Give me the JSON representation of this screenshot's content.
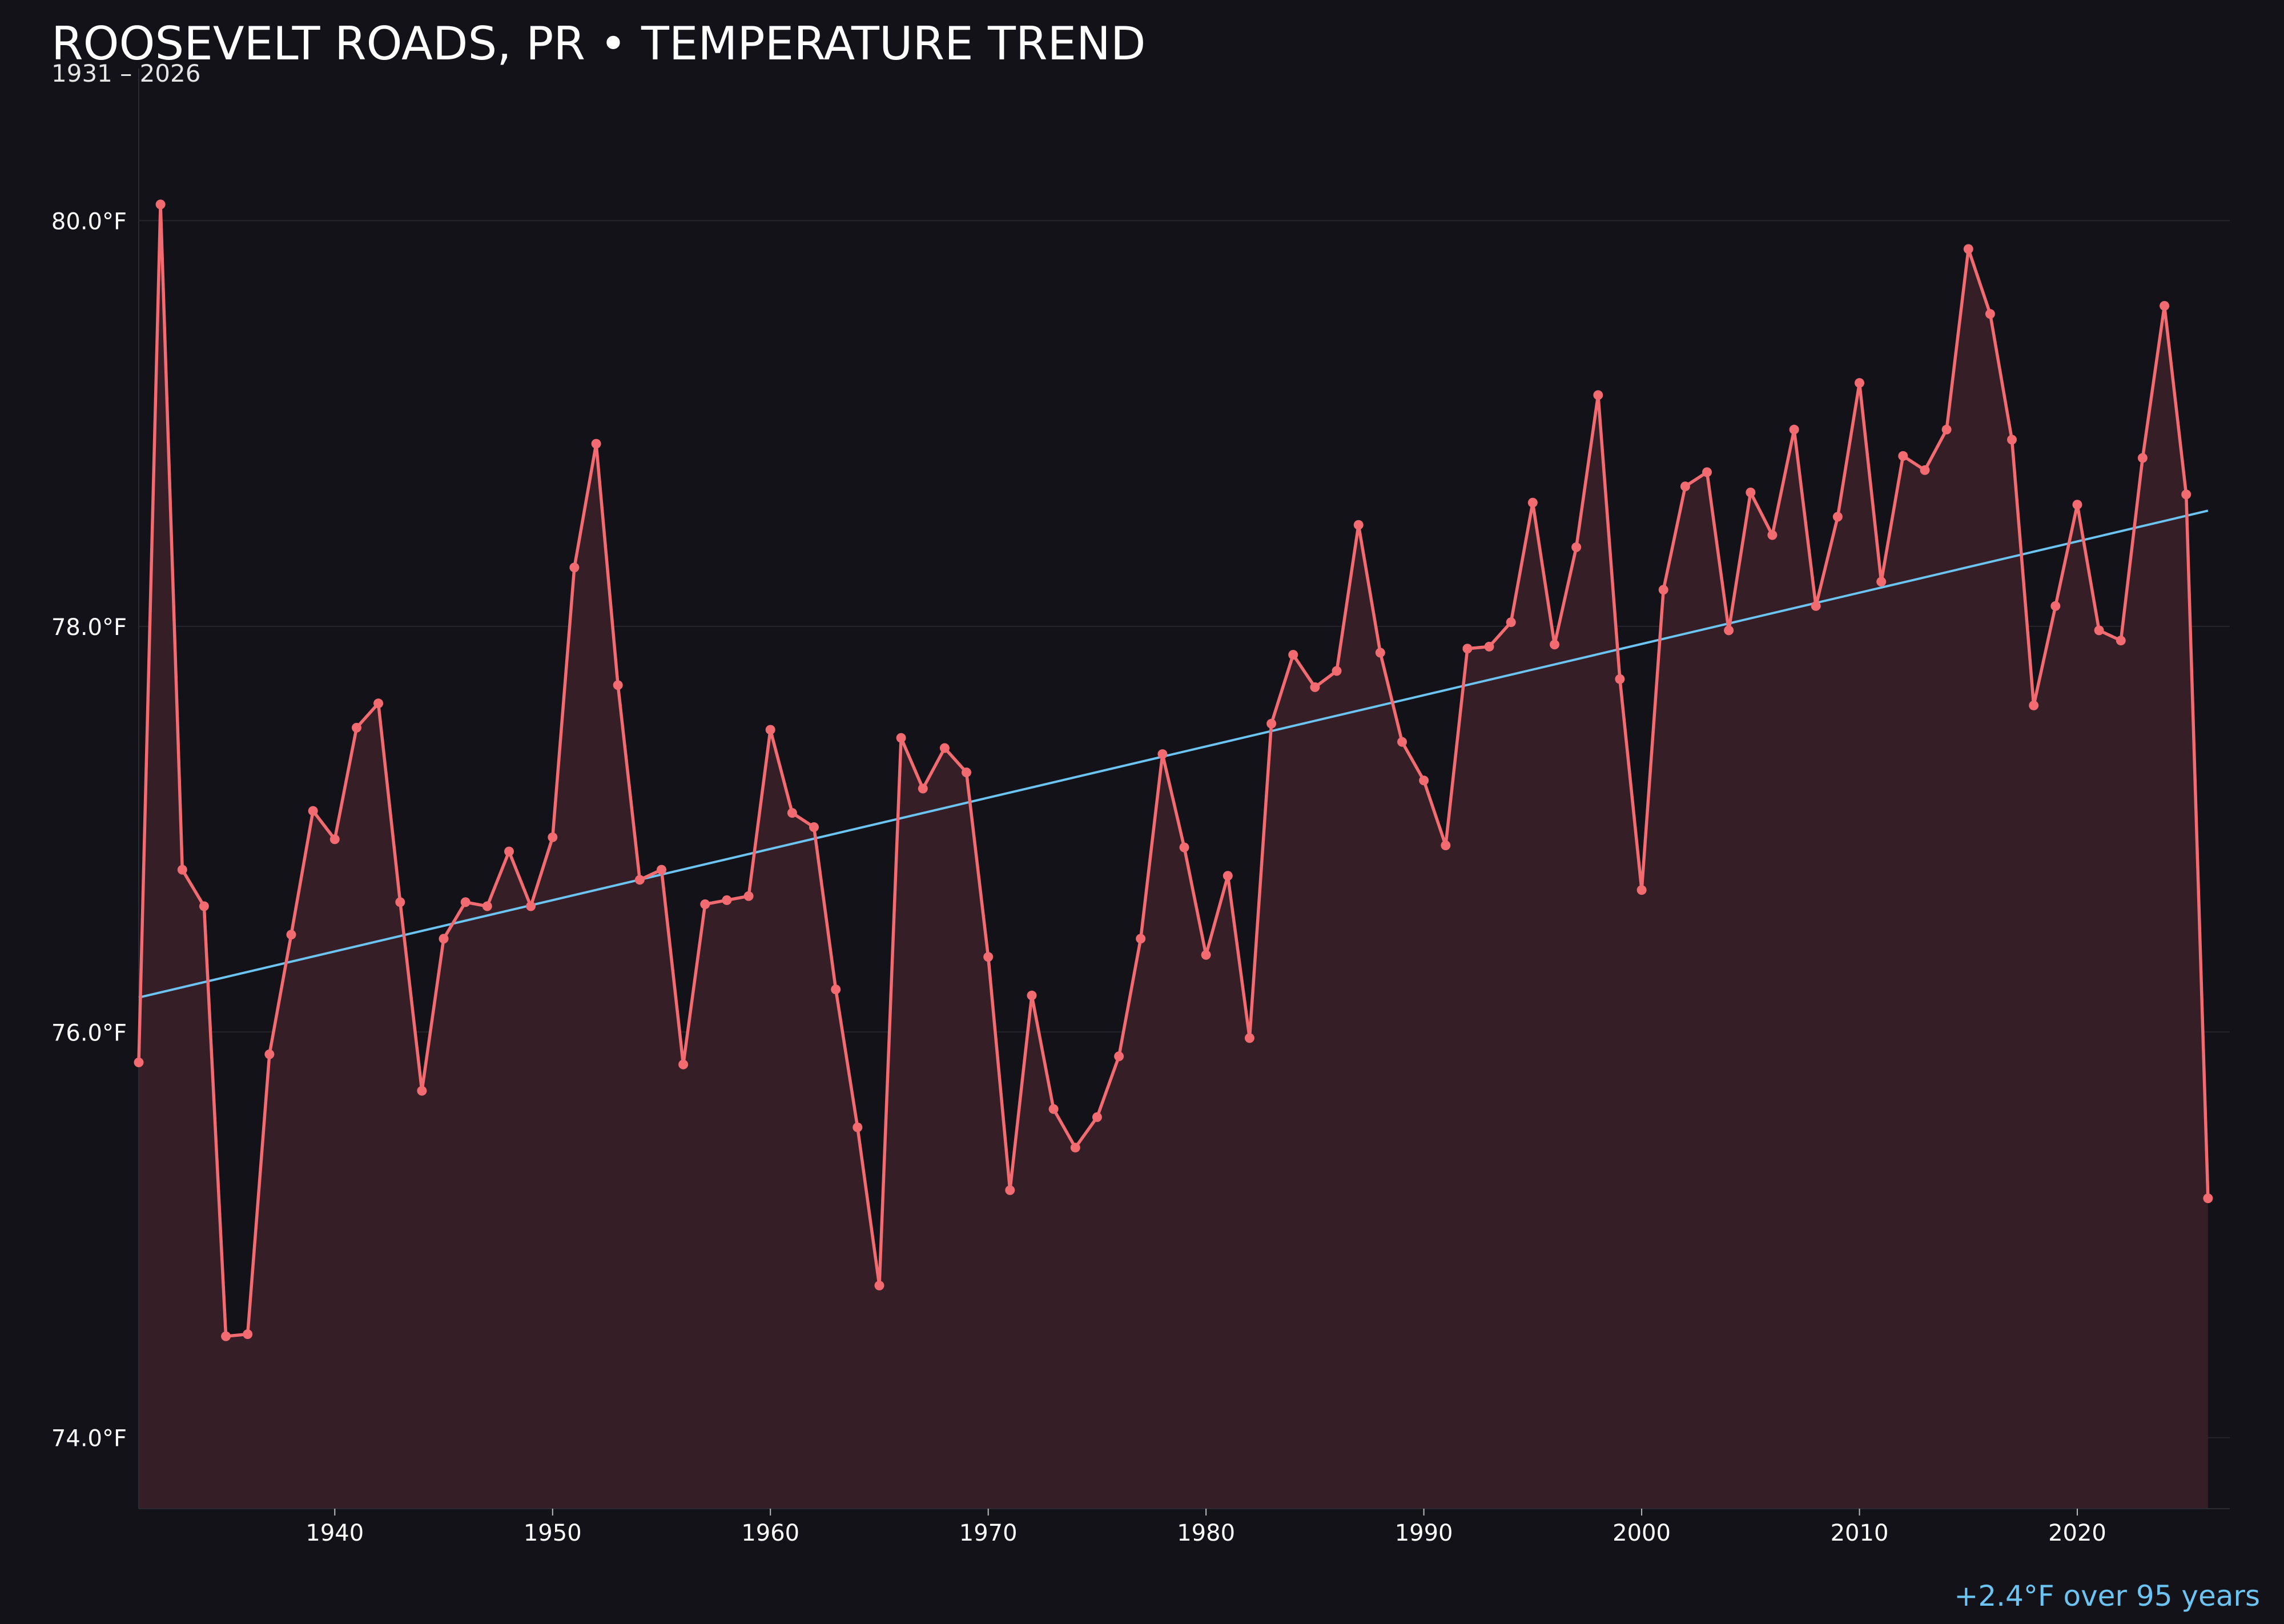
{
  "chart_data": {
    "type": "line",
    "title": "ROOSEVELT ROADS, PR • TEMPERATURE TREND",
    "subtitle": "1931 – 2026",
    "xlabel": "",
    "ylabel": "",
    "xlim": [
      1931,
      2027
    ],
    "ylim": [
      73.65,
      80.75
    ],
    "x_ticks": [
      {
        "value": 1940,
        "label": "1940"
      },
      {
        "value": 1950,
        "label": "1950"
      },
      {
        "value": 1960,
        "label": "1960"
      },
      {
        "value": 1970,
        "label": "1970"
      },
      {
        "value": 1980,
        "label": "1980"
      },
      {
        "value": 1990,
        "label": "1990"
      },
      {
        "value": 2000,
        "label": "2000"
      },
      {
        "value": 2010,
        "label": "2010"
      },
      {
        "value": 2020,
        "label": "2020"
      }
    ],
    "y_ticks": [
      {
        "value": 74,
        "label": "74.0°F"
      },
      {
        "value": 76,
        "label": "76.0°F"
      },
      {
        "value": 78,
        "label": "78.0°F"
      },
      {
        "value": 80,
        "label": "80.0°F"
      }
    ],
    "grid": "horizontal",
    "series": [
      {
        "color": "#f26b70",
        "fill": true,
        "x": [
          1931,
          1932,
          1933,
          1934,
          1935,
          1936,
          1937,
          1938,
          1939,
          1940,
          1941,
          1942,
          1943,
          1944,
          1945,
          1946,
          1947,
          1948,
          1949,
          1950,
          1951,
          1952,
          1953,
          1954,
          1955,
          1956,
          1957,
          1958,
          1959,
          1960,
          1961,
          1962,
          1963,
          1964,
          1965,
          1966,
          1967,
          1968,
          1969,
          1970,
          1971,
          1972,
          1973,
          1974,
          1975,
          1976,
          1977,
          1978,
          1979,
          1980,
          1981,
          1982,
          1983,
          1984,
          1985,
          1986,
          1987,
          1988,
          1989,
          1990,
          1991,
          1992,
          1993,
          1994,
          1995,
          1996,
          1997,
          1998,
          1999,
          2000,
          2001,
          2002,
          2003,
          2004,
          2005,
          2006,
          2007,
          2008,
          2009,
          2010,
          2011,
          2012,
          2013,
          2014,
          2015,
          2016,
          2017,
          2018,
          2019,
          2020,
          2021,
          2022,
          2023,
          2024,
          2025,
          2026
        ],
        "y": [
          75.85,
          80.08,
          76.8,
          76.62,
          74.5,
          74.51,
          75.89,
          76.48,
          77.09,
          76.95,
          77.5,
          77.62,
          76.64,
          75.71,
          76.46,
          76.64,
          76.62,
          76.89,
          76.62,
          76.96,
          78.29,
          78.9,
          77.71,
          76.75,
          76.8,
          75.84,
          76.63,
          76.65,
          76.67,
          77.49,
          77.08,
          77.01,
          76.21,
          75.53,
          74.75,
          77.45,
          77.2,
          77.4,
          77.28,
          76.37,
          75.22,
          76.18,
          75.62,
          75.43,
          75.58,
          75.88,
          76.46,
          77.37,
          76.91,
          76.38,
          76.77,
          75.97,
          77.52,
          77.86,
          77.7,
          77.78,
          78.5,
          77.87,
          77.43,
          77.24,
          76.92,
          77.89,
          77.9,
          78.02,
          78.61,
          77.91,
          78.39,
          79.14,
          77.74,
          76.7,
          78.18,
          78.69,
          78.76,
          77.98,
          78.66,
          78.45,
          78.97,
          78.1,
          78.54,
          79.2,
          78.22,
          78.84,
          78.77,
          78.97,
          79.86,
          79.54,
          78.92,
          77.61,
          78.1,
          78.6,
          77.98,
          77.93,
          78.83,
          79.58,
          78.65,
          75.18
        ]
      },
      {
        "type": "trend",
        "color": "#6cc4f2",
        "x": [
          1931,
          2026
        ],
        "y": [
          76.17,
          78.57
        ]
      }
    ],
    "annotation": "+2.4°F over 95 years"
  }
}
